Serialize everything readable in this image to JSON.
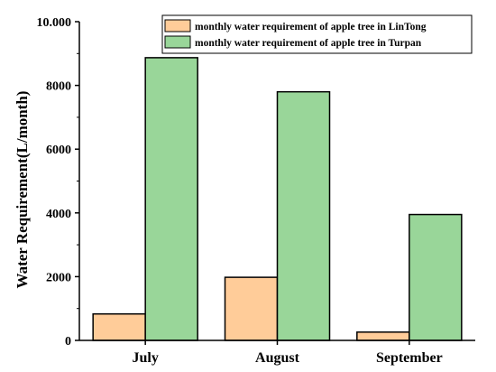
{
  "colors": {
    "series_1": "#ffcc99",
    "series_2": "#99d699",
    "outline": "#000000"
  },
  "chart_data": {
    "type": "bar",
    "title": "",
    "xlabel": "",
    "ylabel": "Water Requirement(L/month)",
    "categories": [
      "July",
      "August",
      "September"
    ],
    "series": [
      {
        "name": "monthly water requirement of apple tree in LinTong",
        "values": [
          830,
          1980,
          260
        ]
      },
      {
        "name": "monthly water requirement of apple tree in Turpan",
        "values": [
          8870,
          7800,
          3950
        ]
      }
    ],
    "ylim": [
      0,
      10000
    ],
    "yticks": [
      0,
      2000,
      4000,
      6000,
      8000,
      10000
    ],
    "ytick_labels": [
      "0",
      "2000",
      "4000",
      "6000",
      "8000",
      "10.000"
    ],
    "grid": false,
    "legend_position": "top-right"
  }
}
